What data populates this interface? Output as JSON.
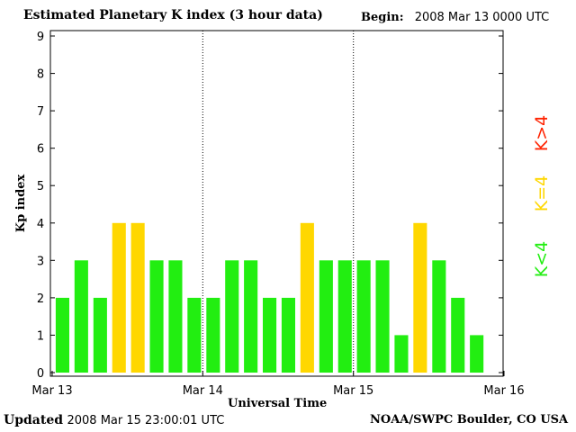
{
  "header": {
    "title": "Estimated Planetary K index (3 hour data)",
    "begin_label": "Begin:",
    "begin_value": "2008 Mar 13 0000 UTC"
  },
  "footer": {
    "updated_label": "Updated",
    "updated_value": "2008 Mar 15 23:00:01 UTC",
    "credit": "NOAA/SWPC Boulder, CO USA"
  },
  "colors": {
    "k_lt_4": "#22ee11",
    "k_eq_4": "#ffd700",
    "k_gt_4": "#ff2200",
    "axis": "#000000"
  },
  "chart_data": {
    "type": "bar",
    "title": "Estimated Planetary K index (3 hour data)",
    "xlabel": "Universal Time",
    "ylabel": "Kp index",
    "ylim": [
      0,
      9
    ],
    "y_ticks": [
      "0",
      "1",
      "2",
      "3",
      "4",
      "5",
      "6",
      "7",
      "8",
      "9"
    ],
    "x_tick_labels": [
      "Mar 13",
      "Mar 14",
      "Mar 15",
      "Mar 16"
    ],
    "x_range_days": [
      0,
      3
    ],
    "bars_per_day": 8,
    "day_dividers": "dotted",
    "values": [
      2,
      3,
      2,
      4,
      4,
      3,
      3,
      2,
      2,
      3,
      3,
      2,
      2,
      4,
      3,
      3,
      3,
      3,
      1,
      4,
      3,
      2,
      1
    ],
    "legend": {
      "placement": "right",
      "entries": [
        {
          "label": "K<4",
          "color": "#22ee11"
        },
        {
          "label": "K=4",
          "color": "#ffd700"
        },
        {
          "label": "K>4",
          "color": "#ff2200"
        }
      ]
    }
  }
}
